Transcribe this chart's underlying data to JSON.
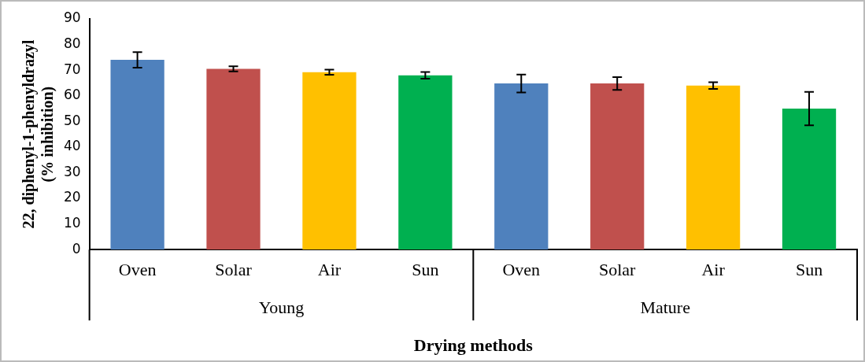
{
  "chart_data": {
    "type": "bar",
    "ylabel": "22, diphenyl-1-phenyldrazyl\n(% inhibition)",
    "xlabel": "Drying methods",
    "categories": [
      "Oven",
      "Solar",
      "Air",
      "Sun",
      "Oven",
      "Solar",
      "Air",
      "Sun"
    ],
    "values": [
      74,
      70.5,
      69.2,
      68,
      64.8,
      64.8,
      64,
      55
    ],
    "colors": [
      "#4f81bd",
      "#c0504d",
      "#ffc000",
      "#00b050",
      "#4f81bd",
      "#c0504d",
      "#ffc000",
      "#00b050"
    ],
    "errors": [
      3,
      1,
      1,
      1.3,
      3.5,
      2.5,
      1.3,
      6.5
    ],
    "annotations": [
      "Young",
      "Mature"
    ],
    "ylim": [
      0,
      90
    ],
    "yticks": [
      0,
      10,
      20,
      30,
      40,
      50,
      60,
      70,
      80,
      90
    ],
    "grid": false,
    "legend": false
  }
}
